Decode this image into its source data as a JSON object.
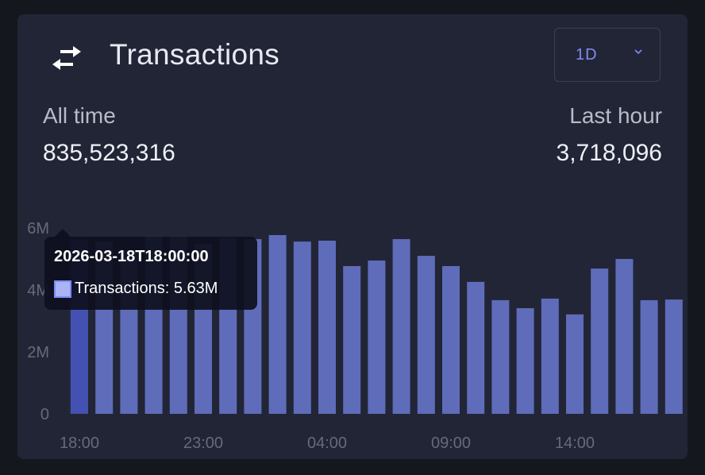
{
  "header": {
    "title": "Transactions",
    "icon": "arrows-left-right-icon",
    "range_select": {
      "value": "1D"
    }
  },
  "stats": {
    "all_time_label": "All time",
    "all_time_value": "835,523,316",
    "last_hour_label": "Last hour",
    "last_hour_value": "3,718,096"
  },
  "tooltip": {
    "title": "2026-03-18T18:00:00",
    "row": "Transactions: 5.63M"
  },
  "colors": {
    "bar": "#5f6cba",
    "bar_active": "#4451b2",
    "accent": "#7f8cf3"
  },
  "chart_data": {
    "type": "bar",
    "categories": [
      "18:00",
      "19:00",
      "20:00",
      "21:00",
      "22:00",
      "23:00",
      "00:00",
      "01:00",
      "02:00",
      "03:00",
      "04:00",
      "05:00",
      "06:00",
      "07:00",
      "08:00",
      "09:00",
      "10:00",
      "11:00",
      "12:00",
      "13:00",
      "14:00",
      "15:00",
      "16:00",
      "17:00",
      "18:00"
    ],
    "series": [
      {
        "name": "Transactions",
        "values": [
          5.63,
          5.56,
          5.28,
          5.72,
          5.72,
          5.49,
          5.69,
          5.64,
          5.77,
          5.56,
          5.59,
          4.77,
          4.95,
          5.64,
          5.1,
          4.77,
          4.26,
          3.67,
          3.41,
          3.72,
          3.21,
          4.69,
          5.0,
          3.67,
          3.69
        ]
      }
    ],
    "unit": "M",
    "ylim": [
      0,
      6
    ],
    "yticks": [
      "0",
      "2M",
      "4M",
      "6M"
    ],
    "xticks": [
      "18:00",
      "23:00",
      "04:00",
      "09:00",
      "14:00"
    ],
    "active_index": 0,
    "grid": false
  }
}
